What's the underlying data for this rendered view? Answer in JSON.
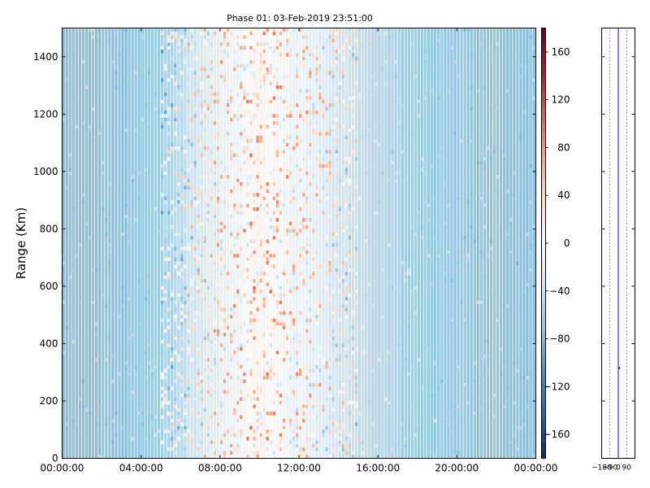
{
  "chart_data": [
    {
      "type": "heatmap",
      "title": "Phase 01: 03-Feb-2019 23:51:00",
      "xlabel": "",
      "ylabel": "Range (Km)",
      "xlim_hours": [
        0,
        24
      ],
      "ylim": [
        0,
        1500
      ],
      "x_ticks": [
        "00:00:00",
        "04:00:00",
        "08:00:00",
        "12:00:00",
        "16:00:00",
        "20:00:00",
        "00:00:00"
      ],
      "x_tick_hours": [
        0,
        4,
        8,
        12,
        16,
        20,
        24
      ],
      "y_ticks": [
        0,
        200,
        400,
        600,
        800,
        1000,
        1200,
        1400
      ],
      "colormap": "RdBu_r",
      "colorbar": {
        "vmin": -180,
        "vmax": 180,
        "ticks": [
          -160,
          -120,
          -80,
          -40,
          0,
          40,
          80,
          120,
          160
        ]
      },
      "grid": false,
      "description_hours_profile": [
        {
          "hour": 0,
          "phase": -75
        },
        {
          "hour": 4,
          "phase": -72
        },
        {
          "hour": 6,
          "phase": -50
        },
        {
          "hour": 8,
          "phase": -15
        },
        {
          "hour": 10,
          "phase": 5
        },
        {
          "hour": 12,
          "phase": -10
        },
        {
          "hour": 14,
          "phase": -35
        },
        {
          "hour": 16,
          "phase": -55
        },
        {
          "hour": 20,
          "phase": -70
        },
        {
          "hour": 24,
          "phase": -75
        }
      ]
    },
    {
      "type": "scatter",
      "x_ticks": [
        "-180",
        "-90",
        "0",
        "90"
      ],
      "x_tick_values": [
        -180,
        -90,
        0,
        90
      ],
      "xlim": [
        -180,
        180
      ],
      "ylim": [
        0,
        1500
      ],
      "grid": true,
      "points": [
        {
          "x": 20,
          "y": 315
        }
      ]
    }
  ]
}
